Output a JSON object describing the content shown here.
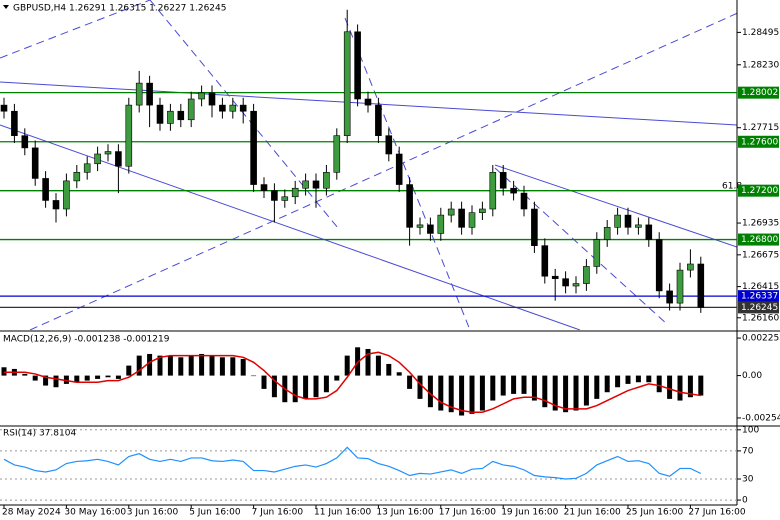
{
  "chart_data": [
    {
      "type": "candlestick",
      "title": "GBPUSD,H4  1.26291 1.26315 1.26227 1.26245",
      "annotation": "61.8",
      "up_color": "#3f9b3f",
      "down_color": "#000000",
      "categories": [
        "28 May 2024",
        null,
        null,
        null,
        null,
        null,
        "30 May 16:00",
        null,
        null,
        null,
        null,
        null,
        "3 Jun 16:00",
        null,
        null,
        null,
        null,
        null,
        "5 Jun 16:00",
        null,
        null,
        null,
        null,
        null,
        "7 Jun 16:00",
        null,
        null,
        null,
        null,
        null,
        "11 Jun 16:00",
        null,
        null,
        null,
        null,
        null,
        "13 Jun 16:00",
        null,
        null,
        null,
        null,
        null,
        "17 Jun 16:00",
        null,
        null,
        null,
        null,
        null,
        "19 Jun 16:00",
        null,
        null,
        null,
        null,
        null,
        "21 Jun 16:00",
        null,
        null,
        null,
        null,
        null,
        "25 Jun 16:00",
        null,
        null,
        null,
        null,
        null,
        "27 Jun 16:00",
        null
      ],
      "open": [
        1.279,
        1.2785,
        1.2765,
        1.2755,
        1.273,
        1.2712,
        1.2705,
        1.2728,
        1.2735,
        1.2742,
        1.275,
        1.2752,
        1.274,
        1.279,
        1.2808,
        1.279,
        1.2775,
        1.2785,
        1.2778,
        1.2795,
        1.28,
        1.279,
        1.2785,
        1.279,
        1.2785,
        1.2725,
        1.272,
        1.2712,
        1.2715,
        1.2722,
        1.2728,
        1.2722,
        1.2735,
        1.2765,
        1.285,
        1.2795,
        1.279,
        1.2765,
        1.275,
        1.2725,
        1.269,
        1.2692,
        1.2685,
        1.27,
        1.2705,
        1.269,
        1.2702,
        1.2705,
        1.2735,
        1.2722,
        1.2718,
        1.2705,
        1.2675,
        1.265,
        1.2648,
        1.2642,
        1.2644,
        1.2658,
        1.268,
        1.269,
        1.27,
        1.269,
        1.2692,
        1.268,
        1.2638,
        1.2628,
        1.2655,
        1.266
      ],
      "high": [
        1.2796,
        1.2791,
        1.2771,
        1.2761,
        1.2736,
        1.2718,
        1.2734,
        1.2741,
        1.2748,
        1.2756,
        1.2758,
        1.2758,
        1.2796,
        1.2818,
        1.2814,
        1.2796,
        1.2791,
        1.2791,
        1.2801,
        1.2806,
        1.2806,
        1.2796,
        1.2796,
        1.2796,
        1.2791,
        1.2731,
        1.2726,
        1.2721,
        1.2728,
        1.2734,
        1.2734,
        1.2741,
        1.2771,
        1.2868,
        1.2856,
        1.2801,
        1.2796,
        1.2771,
        1.2756,
        1.2731,
        1.2698,
        1.2698,
        1.2706,
        1.2711,
        1.2711,
        1.2708,
        1.2711,
        1.2741,
        1.2741,
        1.2728,
        1.2724,
        1.2711,
        1.2681,
        1.2656,
        1.2654,
        1.265,
        1.2664,
        1.2686,
        1.2696,
        1.2706,
        1.2706,
        1.2698,
        1.2698,
        1.2686,
        1.2644,
        1.2661,
        1.2672,
        1.2666
      ],
      "low": [
        1.2779,
        1.2759,
        1.2749,
        1.2724,
        1.2706,
        1.2694,
        1.2699,
        1.2722,
        1.2729,
        1.2736,
        1.2744,
        1.2718,
        1.2734,
        1.2784,
        1.2772,
        1.2769,
        1.2769,
        1.2772,
        1.2772,
        1.2789,
        1.278,
        1.2779,
        1.2779,
        1.2775,
        1.2719,
        1.2714,
        1.2694,
        1.2706,
        1.2709,
        1.2716,
        1.2706,
        1.2716,
        1.2729,
        1.2759,
        1.2789,
        1.2784,
        1.2759,
        1.2744,
        1.2719,
        1.2675,
        1.2684,
        1.2679,
        1.2679,
        1.2694,
        1.2684,
        1.2684,
        1.2696,
        1.2699,
        1.2716,
        1.2712,
        1.2699,
        1.2669,
        1.2644,
        1.263,
        1.2636,
        1.2636,
        1.2638,
        1.2652,
        1.2674,
        1.2684,
        1.2684,
        1.2684,
        1.2674,
        1.2632,
        1.2622,
        1.2622,
        1.2649,
        1.262
      ],
      "close": [
        1.2785,
        1.2765,
        1.2755,
        1.273,
        1.2712,
        1.2705,
        1.2728,
        1.2735,
        1.2742,
        1.275,
        1.2752,
        1.274,
        1.279,
        1.2808,
        1.279,
        1.2775,
        1.2785,
        1.2778,
        1.2795,
        1.28,
        1.279,
        1.2785,
        1.279,
        1.2785,
        1.2725,
        1.272,
        1.2712,
        1.2715,
        1.2722,
        1.2728,
        1.2722,
        1.2735,
        1.2765,
        1.285,
        1.2795,
        1.279,
        1.2765,
        1.275,
        1.2725,
        1.269,
        1.2692,
        1.2685,
        1.27,
        1.2705,
        1.269,
        1.2702,
        1.2705,
        1.2735,
        1.2722,
        1.2718,
        1.2705,
        1.2675,
        1.265,
        1.2648,
        1.2642,
        1.2644,
        1.2658,
        1.268,
        1.269,
        1.27,
        1.269,
        1.2692,
        1.268,
        1.2638,
        1.2628,
        1.2655,
        1.266,
        1.26245
      ],
      "ylim": [
        1.2606,
        1.2876
      ],
      "yticks": [
        1.28495,
        {
          "value": 1.2823,
          "label": "1.28230"
        },
        1.27715,
        1.26935,
        1.26675,
        1.26415,
        {
          "value": 1.2616,
          "label": "1.26160"
        }
      ],
      "levels": [
        {
          "value": 1.28002,
          "label": "1.28002",
          "color": "#008000"
        },
        {
          "value": 1.276,
          "label": "1.27600",
          "color": "#008000"
        },
        {
          "value": 1.272,
          "label": "1.27200",
          "color": "#008000"
        },
        {
          "value": 1.268,
          "label": "1.26800",
          "color": "#008000"
        },
        {
          "value": 1.26337,
          "label": "1.26337",
          "color": "#0000cd"
        },
        {
          "value": 1.26245,
          "label": "1.26245",
          "color": "#333333"
        }
      ]
    },
    {
      "type": "macd",
      "title": "MACD(12,26,9) -0.001238 -0.001219",
      "histogram": {
        "color": "#000000",
        "values": [
          0.0005,
          0.0004,
          0.0001,
          -0.0003,
          -0.0006,
          -0.0007,
          -0.0005,
          -0.0004,
          -0.0003,
          -0.0002,
          -0.0001,
          -0.0002,
          0.0006,
          0.0012,
          0.0013,
          0.0012,
          0.0012,
          0.0011,
          0.0012,
          0.0013,
          0.0012,
          0.0011,
          0.0011,
          0.001,
          0.0,
          -0.0008,
          -0.0013,
          -0.0016,
          -0.0016,
          -0.0014,
          -0.0013,
          -0.001,
          -0.0003,
          0.0012,
          0.0017,
          0.0016,
          0.0012,
          0.0007,
          0.0002,
          -0.0008,
          -0.0014,
          -0.0019,
          -0.0021,
          -0.0022,
          -0.0024,
          -0.0023,
          -0.0021,
          -0.0015,
          -0.0012,
          -0.0011,
          -0.0011,
          -0.0015,
          -0.0019,
          -0.0021,
          -0.0022,
          -0.0021,
          -0.0018,
          -0.0014,
          -0.001,
          -0.0007,
          -0.0005,
          -0.0004,
          -0.0004,
          -0.001,
          -0.0014,
          -0.0015,
          -0.0013,
          -0.0012
        ]
      },
      "signal": {
        "color": "#e00000",
        "values": [
          0.0002,
          0.0002,
          0.0002,
          0.0001,
          -0.0001,
          -0.0002,
          -0.0003,
          -0.0004,
          -0.0004,
          -0.0004,
          -0.0003,
          -0.0003,
          -0.0001,
          0.0003,
          0.0008,
          0.0011,
          0.0012,
          0.0012,
          0.0012,
          0.0012,
          0.0012,
          0.0012,
          0.0012,
          0.0011,
          0.0008,
          0.0003,
          -0.0003,
          -0.0008,
          -0.0012,
          -0.0014,
          -0.0014,
          -0.0013,
          -0.0009,
          -0.0001,
          0.0008,
          0.0013,
          0.0014,
          0.0012,
          0.0008,
          0.0002,
          -0.0005,
          -0.0011,
          -0.0016,
          -0.0019,
          -0.0021,
          -0.0022,
          -0.0022,
          -0.002,
          -0.0017,
          -0.0014,
          -0.0013,
          -0.0013,
          -0.0015,
          -0.0018,
          -0.002,
          -0.002,
          -0.002,
          -0.0018,
          -0.0015,
          -0.0012,
          -0.0009,
          -0.0007,
          -0.0005,
          -0.0006,
          -0.0008,
          -0.001,
          -0.0011,
          -0.0012
        ]
      },
      "ylim": [
        -0.00297,
        0.00256
      ],
      "yticks": [
        0.002255,
        {
          "value": 0,
          "label": "0.00"
        },
        -0.002546
      ]
    },
    {
      "type": "line",
      "title": "RSI(14) 37.8104",
      "color": "#1e90ff",
      "values": [
        58,
        50,
        47,
        42,
        40,
        43,
        52,
        55,
        56,
        58,
        55,
        50,
        62,
        66,
        58,
        55,
        58,
        55,
        60,
        60,
        56,
        55,
        57,
        55,
        42,
        42,
        40,
        44,
        48,
        50,
        47,
        52,
        60,
        75,
        60,
        59,
        52,
        48,
        42,
        35,
        38,
        37,
        40,
        43,
        38,
        44,
        45,
        55,
        50,
        48,
        43,
        35,
        33,
        32,
        30,
        31,
        38,
        50,
        56,
        62,
        55,
        56,
        52,
        38,
        34,
        45,
        45,
        37.8
      ],
      "ylim": [
        -7,
        104
      ],
      "yticks": [
        100,
        70,
        30,
        0
      ],
      "grid": true
    }
  ]
}
